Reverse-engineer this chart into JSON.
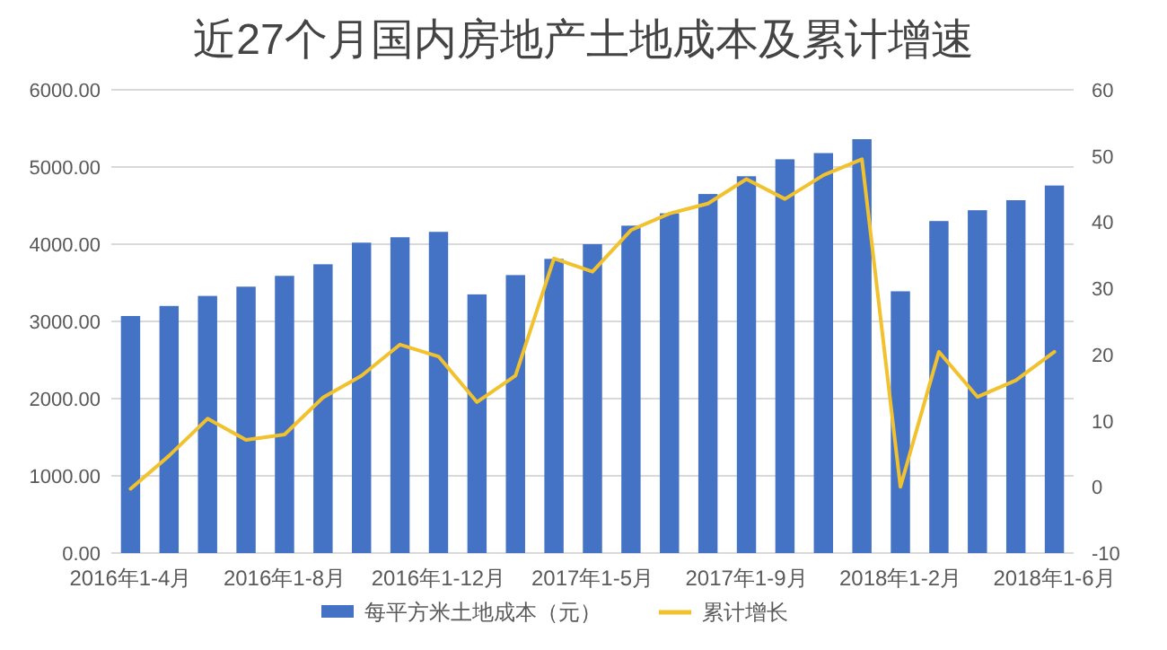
{
  "chart_data": {
    "type": "bar",
    "title": "近27个月国内房地产土地成本及累计增速",
    "categories": [
      "2016年1-4月",
      null,
      null,
      null,
      "2016年1-8月",
      null,
      null,
      null,
      "2016年1-12月",
      null,
      null,
      null,
      "2017年1-5月",
      null,
      null,
      null,
      "2017年1-9月",
      null,
      null,
      null,
      "2018年1-2月",
      null,
      null,
      null,
      "2018年1-6月"
    ],
    "series": [
      {
        "name": "每平方米土地成本（元）",
        "color": "#4472c4",
        "values": [
          3070,
          3200,
          3330,
          3450,
          3590,
          3740,
          4020,
          4090,
          4160,
          3350,
          3600,
          3810,
          4000,
          4240,
          4400,
          4650,
          4880,
          5100,
          5180,
          5360,
          3390,
          4300,
          4440,
          4570,
          4760
        ]
      },
      {
        "name": "累计增长",
        "type": "line",
        "axis": "y2",
        "color": "#f2c12e",
        "values": [
          -0.3,
          4.7,
          10.3,
          7.1,
          7.9,
          13.5,
          16.8,
          21.5,
          19.7,
          12.8,
          16.8,
          34.5,
          32.5,
          38.8,
          41.3,
          42.8,
          46.5,
          43.5,
          47.1,
          49.5,
          0,
          20.4,
          13.6,
          16.1,
          20.4
        ]
      }
    ],
    "ylim": [
      0,
      6000
    ],
    "yticks": [
      {
        "value": 0,
        "label": "0.00"
      },
      {
        "value": 1000,
        "label": "1000.00"
      },
      {
        "value": 2000,
        "label": "2000.00"
      },
      {
        "value": 3000,
        "label": "3000.00"
      },
      {
        "value": 4000,
        "label": "4000.00"
      },
      {
        "value": 5000,
        "label": "5000.00"
      },
      {
        "value": 6000,
        "label": "6000.00"
      }
    ],
    "y2lim": [
      -10,
      60
    ],
    "y2ticks": [
      -10,
      0,
      10,
      20,
      30,
      40,
      50,
      60
    ],
    "grid": "y",
    "legend": "bottom"
  }
}
